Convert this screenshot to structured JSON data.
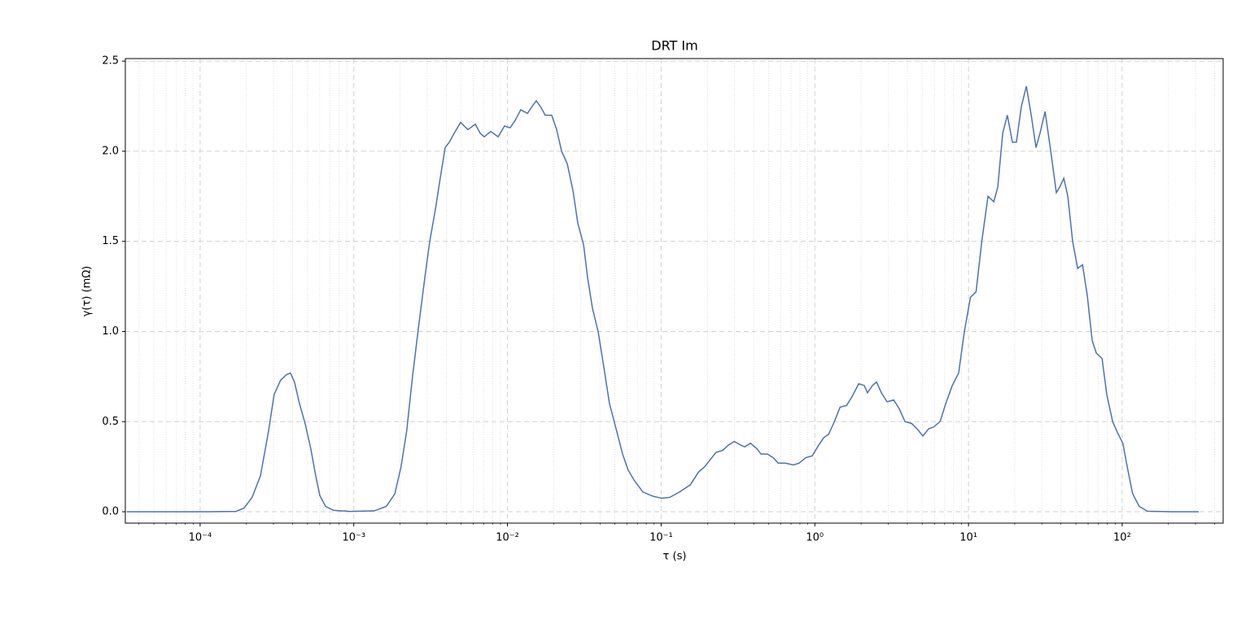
{
  "chart_data": {
    "type": "line",
    "title": "DRT Im",
    "x_label": "τ (s)",
    "y_label": "γ(τ) (mΩ)",
    "x_scale": "log",
    "grid": true,
    "minor_grid": true,
    "xlim": [
      3.26e-05,
      454
    ],
    "ylim": [
      -0.063,
      2.514
    ],
    "xticks": [
      {
        "value": 0.0001,
        "label": "10⁻⁴"
      },
      {
        "value": 0.001,
        "label": "10⁻³"
      },
      {
        "value": 0.01,
        "label": "10⁻²"
      },
      {
        "value": 0.1,
        "label": "10⁻¹"
      },
      {
        "value": 1,
        "label": "10⁰"
      },
      {
        "value": 10,
        "label": "10¹"
      },
      {
        "value": 100,
        "label": "10²"
      }
    ],
    "xminorticks": [
      4e-05,
      5e-05,
      6e-05,
      7e-05,
      8e-05,
      9e-05,
      0.0002,
      0.0003,
      0.0004,
      0.0005,
      0.0006,
      0.0007,
      0.0008,
      0.0009,
      0.002,
      0.003,
      0.004,
      0.005,
      0.006,
      0.007,
      0.008,
      0.009,
      0.02,
      0.03,
      0.04,
      0.05,
      0.06,
      0.07,
      0.08,
      0.09,
      0.2,
      0.3,
      0.4,
      0.5,
      0.6,
      0.7,
      0.8,
      0.9,
      2,
      3,
      4,
      5,
      6,
      7,
      8,
      9,
      20,
      30,
      40,
      50,
      60,
      70,
      80,
      90,
      200,
      300,
      400
    ],
    "yticks": [
      {
        "value": 0,
        "label": "0.0"
      },
      {
        "value": 0.5,
        "label": "0.5"
      },
      {
        "value": 1,
        "label": "1.0"
      },
      {
        "value": 1.5,
        "label": "1.5"
      },
      {
        "value": 2,
        "label": "2.0"
      },
      {
        "value": 2.5,
        "label": "2.5"
      }
    ],
    "x": [
      3.34e-05,
      0.0001,
      0.000171,
      0.000193,
      0.000218,
      0.000247,
      0.000279,
      0.000303,
      0.000334,
      0.000364,
      0.000387,
      0.000411,
      0.000443,
      0.000482,
      0.000525,
      0.000565,
      0.000601,
      0.000655,
      0.000739,
      0.000944,
      0.00136,
      0.00163,
      0.00185,
      0.00203,
      0.00221,
      0.00241,
      0.00266,
      0.0029,
      0.00312,
      0.0034,
      0.00365,
      0.00393,
      0.00418,
      0.0045,
      0.00495,
      0.00553,
      0.00617,
      0.00664,
      0.00706,
      0.00778,
      0.00869,
      0.00957,
      0.0104,
      0.0112,
      0.0122,
      0.0135,
      0.0145,
      0.0154,
      0.0166,
      0.0176,
      0.0194,
      0.0209,
      0.0225,
      0.0245,
      0.0267,
      0.0287,
      0.0313,
      0.0332,
      0.0357,
      0.0389,
      0.0424,
      0.0461,
      0.0509,
      0.0561,
      0.0611,
      0.0673,
      0.076,
      0.0891,
      0.101,
      0.114,
      0.132,
      0.155,
      0.175,
      0.192,
      0.209,
      0.228,
      0.251,
      0.274,
      0.299,
      0.329,
      0.349,
      0.381,
      0.42,
      0.446,
      0.492,
      0.536,
      0.577,
      0.643,
      0.726,
      0.791,
      0.873,
      0.962,
      1.06,
      1.14,
      1.23,
      1.34,
      1.46,
      1.61,
      1.75,
      1.93,
      2.1,
      2.2,
      2.37,
      2.52,
      2.71,
      2.95,
      3.26,
      3.55,
      3.86,
      4.26,
      4.63,
      5.05,
      5.5,
      5.92,
      6.53,
      7.11,
      7.84,
      8.63,
      9.4,
      10.3,
      11.2,
      12.2,
      13.4,
      14.6,
      15.5,
      16.7,
      17.9,
      19.3,
      20.5,
      22.1,
      23.8,
      25.6,
      27.5,
      29.2,
      31.5,
      34.3,
      37.3,
      39.2,
      41.7,
      44.3,
      47.6,
      51.3,
      55.2,
      59.3,
      63.8,
      67.9,
      74.0,
      79.4,
      86.7,
      93.1,
      101,
      109,
      117,
      129,
      146,
      211,
      315
    ],
    "series": [
      {
        "color": "#4c72b0",
        "values": [
          0,
          0,
          0.002,
          0.02,
          0.08,
          0.2,
          0.45,
          0.65,
          0.73,
          0.76,
          0.77,
          0.72,
          0.6,
          0.49,
          0.35,
          0.2,
          0.09,
          0.03,
          0.008,
          0.002,
          0.005,
          0.03,
          0.1,
          0.25,
          0.45,
          0.75,
          1.05,
          1.3,
          1.5,
          1.68,
          1.85,
          2.02,
          2.05,
          2.1,
          2.16,
          2.12,
          2.15,
          2.1,
          2.08,
          2.11,
          2.08,
          2.14,
          2.13,
          2.17,
          2.23,
          2.21,
          2.25,
          2.28,
          2.24,
          2.2,
          2.2,
          2.12,
          2.0,
          1.93,
          1.78,
          1.6,
          1.48,
          1.3,
          1.13,
          1.0,
          0.8,
          0.6,
          0.46,
          0.32,
          0.23,
          0.17,
          0.11,
          0.085,
          0.075,
          0.08,
          0.11,
          0.15,
          0.22,
          0.25,
          0.29,
          0.33,
          0.34,
          0.37,
          0.39,
          0.37,
          0.36,
          0.38,
          0.35,
          0.32,
          0.32,
          0.3,
          0.27,
          0.27,
          0.26,
          0.27,
          0.3,
          0.31,
          0.37,
          0.41,
          0.43,
          0.5,
          0.58,
          0.59,
          0.64,
          0.71,
          0.7,
          0.66,
          0.7,
          0.72,
          0.66,
          0.61,
          0.62,
          0.57,
          0.5,
          0.49,
          0.46,
          0.42,
          0.46,
          0.47,
          0.5,
          0.6,
          0.7,
          0.77,
          1.0,
          1.19,
          1.22,
          1.5,
          1.75,
          1.72,
          1.8,
          2.1,
          2.2,
          2.05,
          2.05,
          2.25,
          2.36,
          2.2,
          2.02,
          2.1,
          2.22,
          2.0,
          1.77,
          1.8,
          1.85,
          1.75,
          1.5,
          1.35,
          1.37,
          1.2,
          0.95,
          0.88,
          0.85,
          0.65,
          0.5,
          0.44,
          0.38,
          0.23,
          0.1,
          0.03,
          0.003,
          0,
          0
        ]
      }
    ]
  }
}
